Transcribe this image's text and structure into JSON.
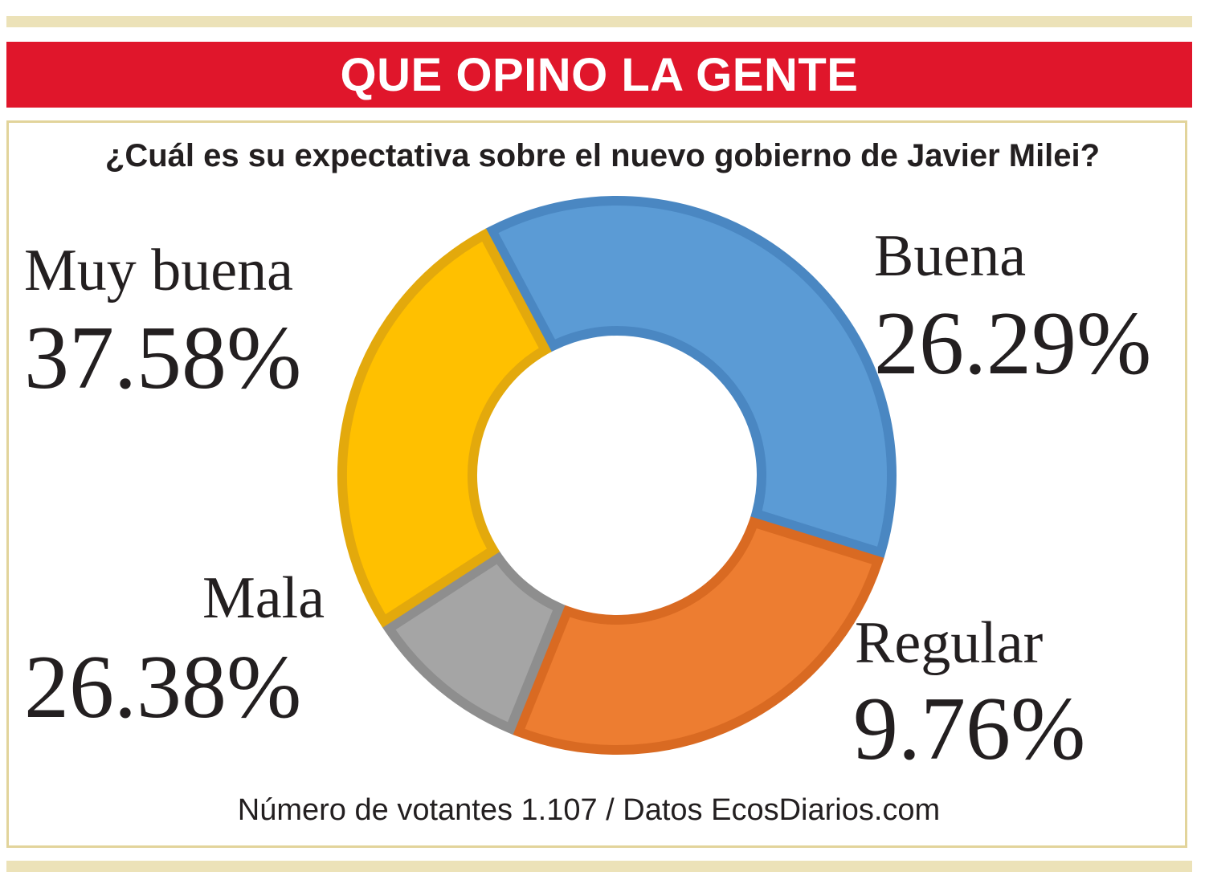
{
  "header": {
    "title": "QUE OPINO LA GENTE"
  },
  "question": "¿Cuál es su expectativa sobre el nuevo gobierno de Javier Milei?",
  "footer": "Número de votantes 1.107 / Datos EcosDiarios.com",
  "chart_data": {
    "type": "pie",
    "title": "¿Cuál es su expectativa sobre el nuevo gobierno de Javier Milei?",
    "categories": [
      "Muy buena",
      "Buena",
      "Regular",
      "Mala"
    ],
    "values": [
      37.58,
      26.29,
      9.76,
      26.38
    ],
    "labels": [
      "37.58%",
      "26.29%",
      "9.76%",
      "26.38%"
    ],
    "colors": [
      "#5b9bd5",
      "#ed7d31",
      "#a5a5a5",
      "#ffc000"
    ],
    "stroke_colors": [
      "#4a87c2",
      "#d96a22",
      "#8e8e8e",
      "#e3a90c"
    ]
  }
}
